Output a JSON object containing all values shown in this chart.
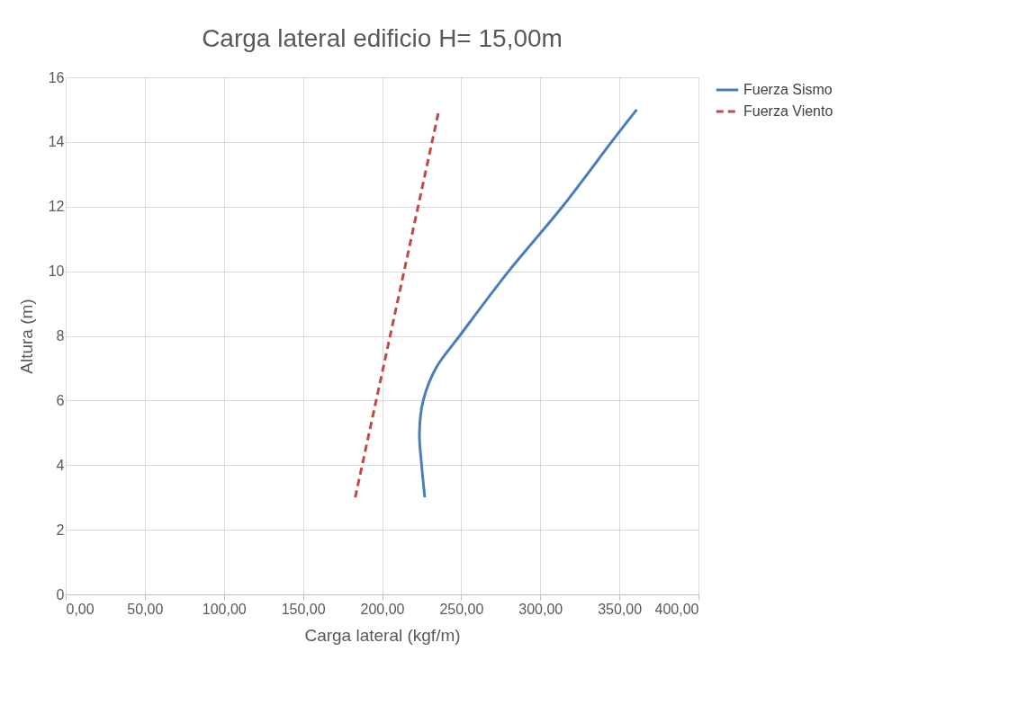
{
  "chart_data": {
    "type": "line",
    "title": "Carga lateral edificio H= 15,00m",
    "xlabel": "Carga lateral (kgf/m)",
    "ylabel": "Altura (m)",
    "xlim": [
      0,
      400
    ],
    "xticks": [
      {
        "value": 0,
        "label": "0,00"
      },
      {
        "value": 50,
        "label": "50,00"
      },
      {
        "value": 100,
        "label": "100,00"
      },
      {
        "value": 150,
        "label": "150,00"
      },
      {
        "value": 200,
        "label": "200,00"
      },
      {
        "value": 250,
        "label": "250,00"
      },
      {
        "value": 300,
        "label": "300,00"
      },
      {
        "value": 350,
        "label": "350,00"
      },
      {
        "value": 400,
        "label": "400,00"
      }
    ],
    "ylim": [
      0,
      16
    ],
    "yticks": [
      0,
      2,
      4,
      6,
      8,
      10,
      12,
      14,
      16
    ],
    "grid": true,
    "legend": "right",
    "marker": "none",
    "series": [
      {
        "name": "Fuerza Sismo",
        "color": "#4a7ebb",
        "line_style": "solid",
        "x": [
          227,
          225,
          223.6,
          226,
          234,
          249,
          280,
          314,
          345,
          361
        ],
        "values": [
          3,
          4,
          5,
          6,
          7,
          8,
          10,
          12,
          14,
          15
        ]
      },
      {
        "name": "Fuerza Viento",
        "color": "#be4b48",
        "line_style": "dashed",
        "x": [
          183,
          236
        ],
        "values": [
          3,
          15
        ]
      }
    ]
  }
}
